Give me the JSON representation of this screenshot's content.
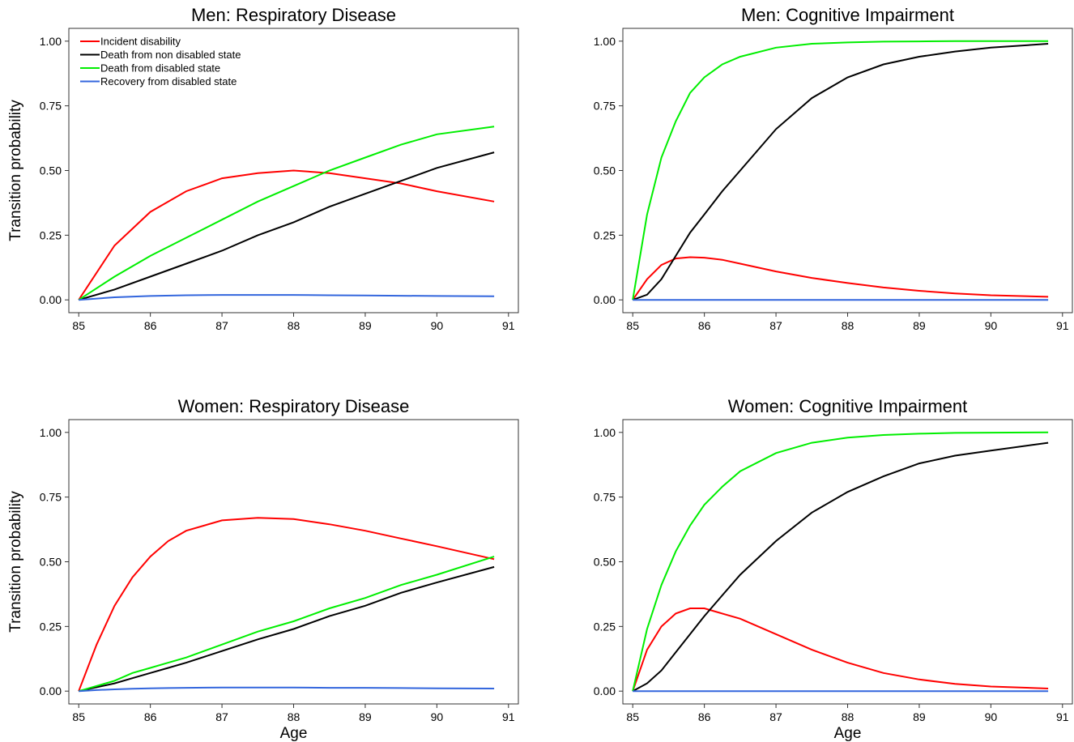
{
  "colors": {
    "incident": "#ff0000",
    "death_non_disabled": "#000000",
    "death_disabled": "#00ee00",
    "recovery": "#3366dd"
  },
  "legend_entries": [
    {
      "key": "incident",
      "label": "Incident disability"
    },
    {
      "key": "death_non_disabled",
      "label": "Death from non disabled state"
    },
    {
      "key": "death_disabled",
      "label": "Death from disabled state"
    },
    {
      "key": "recovery",
      "label": "Recovery from disabled state"
    }
  ],
  "chart_data": [
    {
      "type": "line",
      "title": "Men: Respiratory Disease",
      "xlabel": "",
      "ylabel": "Transition probability",
      "xlim": [
        85,
        91
      ],
      "ylim": [
        0,
        1
      ],
      "xticks": [
        "85",
        "86",
        "87",
        "88",
        "89",
        "90",
        "91"
      ],
      "yticks": [
        "0.00",
        "0.25",
        "0.50",
        "0.75",
        "1.00"
      ],
      "legend": "top-left",
      "x": [
        85,
        85.5,
        86,
        86.5,
        87,
        87.5,
        88,
        88.5,
        89,
        89.5,
        90,
        90.8
      ],
      "series": [
        {
          "key": "incident",
          "values": [
            0,
            0.21,
            0.34,
            0.42,
            0.47,
            0.49,
            0.5,
            0.49,
            0.47,
            0.45,
            0.42,
            0.38
          ]
        },
        {
          "key": "death_non_disabled",
          "values": [
            0,
            0.04,
            0.09,
            0.14,
            0.19,
            0.25,
            0.3,
            0.36,
            0.41,
            0.46,
            0.51,
            0.57
          ]
        },
        {
          "key": "death_disabled",
          "values": [
            0,
            0.09,
            0.17,
            0.24,
            0.31,
            0.38,
            0.44,
            0.5,
            0.55,
            0.6,
            0.64,
            0.67
          ]
        },
        {
          "key": "recovery",
          "values": [
            0,
            0.01,
            0.015,
            0.018,
            0.019,
            0.019,
            0.019,
            0.018,
            0.017,
            0.016,
            0.015,
            0.014
          ]
        }
      ]
    },
    {
      "type": "line",
      "title": "Men: Cognitive Impairment",
      "xlabel": "",
      "ylabel": "",
      "xlim": [
        85,
        91
      ],
      "ylim": [
        0,
        1
      ],
      "xticks": [
        "85",
        "86",
        "87",
        "88",
        "89",
        "90",
        "91"
      ],
      "yticks": [
        "0.00",
        "0.25",
        "0.50",
        "0.75",
        "1.00"
      ],
      "legend": "none",
      "x": [
        85,
        85.2,
        85.4,
        85.6,
        85.8,
        86,
        86.25,
        86.5,
        87,
        87.5,
        88,
        88.5,
        89,
        89.5,
        90,
        90.8
      ],
      "series": [
        {
          "key": "incident",
          "values": [
            0,
            0.08,
            0.135,
            0.16,
            0.165,
            0.163,
            0.155,
            0.14,
            0.11,
            0.085,
            0.065,
            0.048,
            0.035,
            0.025,
            0.018,
            0.012
          ]
        },
        {
          "key": "death_non_disabled",
          "values": [
            0,
            0.02,
            0.08,
            0.17,
            0.26,
            0.33,
            0.42,
            0.5,
            0.66,
            0.78,
            0.86,
            0.91,
            0.94,
            0.96,
            0.975,
            0.99
          ]
        },
        {
          "key": "death_disabled",
          "values": [
            0,
            0.33,
            0.55,
            0.69,
            0.8,
            0.86,
            0.91,
            0.94,
            0.975,
            0.99,
            0.995,
            0.998,
            0.999,
            1,
            1,
            1
          ]
        },
        {
          "key": "recovery",
          "values": [
            0,
            0,
            0,
            0,
            0,
            0,
            0,
            0,
            0,
            0,
            0,
            0,
            0,
            0,
            0,
            0
          ]
        }
      ]
    },
    {
      "type": "line",
      "title": "Women: Respiratory Disease",
      "xlabel": "Age",
      "ylabel": "Transition probability",
      "xlim": [
        85,
        91
      ],
      "ylim": [
        0,
        1
      ],
      "xticks": [
        "85",
        "86",
        "87",
        "88",
        "89",
        "90",
        "91"
      ],
      "yticks": [
        "0.00",
        "0.25",
        "0.50",
        "0.75",
        "1.00"
      ],
      "legend": "none",
      "x": [
        85,
        85.25,
        85.5,
        85.75,
        86,
        86.25,
        86.5,
        87,
        87.5,
        88,
        88.5,
        89,
        89.5,
        90,
        90.8
      ],
      "series": [
        {
          "key": "incident",
          "values": [
            0,
            0.18,
            0.33,
            0.44,
            0.52,
            0.58,
            0.62,
            0.66,
            0.67,
            0.665,
            0.645,
            0.62,
            0.59,
            0.56,
            0.51
          ]
        },
        {
          "key": "death_non_disabled",
          "values": [
            0,
            0.015,
            0.03,
            0.05,
            0.07,
            0.09,
            0.11,
            0.155,
            0.2,
            0.24,
            0.29,
            0.33,
            0.38,
            0.42,
            0.48
          ]
        },
        {
          "key": "death_disabled",
          "values": [
            0,
            0.02,
            0.04,
            0.07,
            0.09,
            0.11,
            0.13,
            0.18,
            0.23,
            0.27,
            0.32,
            0.36,
            0.41,
            0.45,
            0.52
          ]
        },
        {
          "key": "recovery",
          "values": [
            0,
            0.004,
            0.007,
            0.009,
            0.011,
            0.012,
            0.013,
            0.014,
            0.014,
            0.014,
            0.013,
            0.013,
            0.012,
            0.011,
            0.01
          ]
        }
      ]
    },
    {
      "type": "line",
      "title": "Women: Cognitive Impairment",
      "xlabel": "Age",
      "ylabel": "",
      "xlim": [
        85,
        91
      ],
      "ylim": [
        0,
        1
      ],
      "xticks": [
        "85",
        "86",
        "87",
        "88",
        "89",
        "90",
        "91"
      ],
      "yticks": [
        "0.00",
        "0.25",
        "0.50",
        "0.75",
        "1.00"
      ],
      "legend": "none",
      "x": [
        85,
        85.2,
        85.4,
        85.6,
        85.8,
        86,
        86.25,
        86.5,
        87,
        87.5,
        88,
        88.5,
        89,
        89.5,
        90,
        90.8
      ],
      "series": [
        {
          "key": "incident",
          "values": [
            0,
            0.16,
            0.25,
            0.3,
            0.32,
            0.32,
            0.3,
            0.28,
            0.22,
            0.16,
            0.11,
            0.07,
            0.045,
            0.028,
            0.018,
            0.01
          ]
        },
        {
          "key": "death_non_disabled",
          "values": [
            0,
            0.03,
            0.08,
            0.15,
            0.22,
            0.29,
            0.37,
            0.45,
            0.58,
            0.69,
            0.77,
            0.83,
            0.88,
            0.91,
            0.93,
            0.96
          ]
        },
        {
          "key": "death_disabled",
          "values": [
            0,
            0.24,
            0.41,
            0.54,
            0.64,
            0.72,
            0.79,
            0.85,
            0.92,
            0.96,
            0.98,
            0.99,
            0.995,
            0.998,
            0.999,
            1
          ]
        },
        {
          "key": "recovery",
          "values": [
            0,
            0,
            0,
            0,
            0,
            0,
            0,
            0,
            0,
            0,
            0,
            0,
            0,
            0,
            0,
            0
          ]
        }
      ]
    }
  ]
}
